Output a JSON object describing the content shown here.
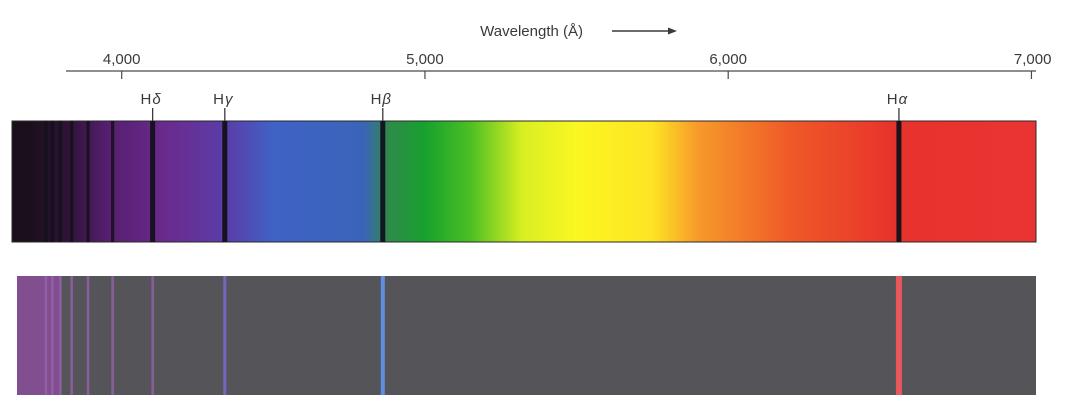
{
  "axis": {
    "title": "Wavelength (Å)",
    "range": [
      3700,
      7000
    ],
    "ticks": [
      {
        "value": 4000,
        "label": "4,000"
      },
      {
        "value": 5000,
        "label": "5,000"
      },
      {
        "value": 6000,
        "label": "6,000"
      },
      {
        "value": 7000,
        "label": "7,000"
      }
    ]
  },
  "labeled_lines": [
    {
      "name": "H-delta",
      "label_main": "H",
      "label_greek": "δ",
      "wavelength": 4102
    },
    {
      "name": "H-gamma",
      "label_main": "H",
      "label_greek": "γ",
      "wavelength": 4340
    },
    {
      "name": "H-beta",
      "label_main": "H",
      "label_greek": "β",
      "wavelength": 4861
    },
    {
      "name": "H-alpha",
      "label_main": "H",
      "label_greek": "α",
      "wavelength": 6563
    }
  ],
  "balmer_series_lines": [
    3750,
    3771,
    3798,
    3835,
    3889,
    3970,
    4102,
    4340,
    4861,
    6563
  ],
  "colors": {
    "continuum_stops": [
      {
        "wavelength": 3700,
        "color": "#1b0f1c"
      },
      {
        "wavelength": 3820,
        "color": "#2e1236"
      },
      {
        "wavelength": 3950,
        "color": "#551e6e"
      },
      {
        "wavelength": 4150,
        "color": "#6a2b8e"
      },
      {
        "wavelength": 4350,
        "color": "#5a3ea8"
      },
      {
        "wavelength": 4500,
        "color": "#3f62c6"
      },
      {
        "wavelength": 4800,
        "color": "#3a64b8"
      },
      {
        "wavelength": 4880,
        "color": "#2f8a4a"
      },
      {
        "wavelength": 5000,
        "color": "#17a12e"
      },
      {
        "wavelength": 5150,
        "color": "#4cbf23"
      },
      {
        "wavelength": 5320,
        "color": "#d8ee22"
      },
      {
        "wavelength": 5500,
        "color": "#fbf722"
      },
      {
        "wavelength": 5750,
        "color": "#fde424"
      },
      {
        "wavelength": 5900,
        "color": "#f79a2a"
      },
      {
        "wavelength": 6200,
        "color": "#ef5a28"
      },
      {
        "wavelength": 6550,
        "color": "#e8322c"
      },
      {
        "wavelength": 7000,
        "color": "#e93433"
      }
    ],
    "absorption_line": "#14101a",
    "emission_background": "#555559",
    "emission_purple": "#8a4f9a",
    "emission_violet": "#9a63b0",
    "emission_h_gamma": "#7b66c6",
    "emission_h_beta": "#5f8fe0",
    "emission_h_alpha": "#e8575a"
  }
}
